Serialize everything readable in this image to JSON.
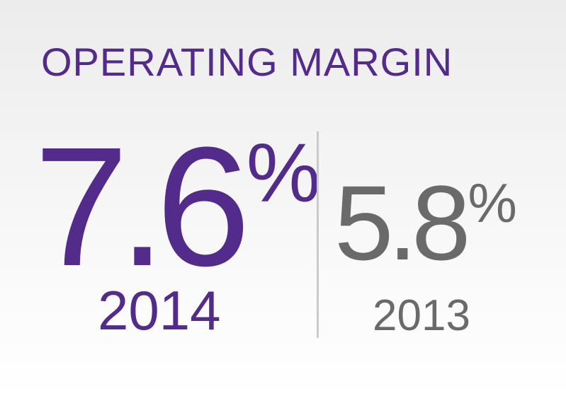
{
  "title": "OPERATING MARGIN",
  "current": {
    "value": "7.6",
    "unit": "%",
    "year": "2014"
  },
  "previous": {
    "value": "5.8",
    "unit": "%",
    "year": "2013"
  },
  "colors": {
    "accent": "#532b8a",
    "secondary": "#6a6a6a",
    "divider": "#c9c9cf"
  }
}
